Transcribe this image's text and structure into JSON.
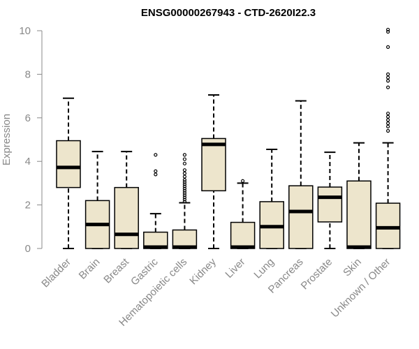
{
  "chart_data": {
    "type": "boxplot",
    "title": "ENSG00000267943 - CTD-2620I22.3",
    "xlabel": "",
    "ylabel": "Expression",
    "ylim": [
      0,
      10
    ],
    "yticks": [
      0,
      2,
      4,
      6,
      8,
      10
    ],
    "grid": false,
    "box_color": "#ede5cc",
    "categories": [
      "Bladder",
      "Brain",
      "Breast",
      "Gastric",
      "Hematopoietic cells",
      "Kidney",
      "Liver",
      "Lung",
      "Pancreas",
      "Prostate",
      "Skin",
      "Unknown / Other"
    ],
    "boxes": [
      {
        "min": 0,
        "q1": 2.8,
        "median": 3.72,
        "q3": 4.95,
        "max": 6.9,
        "outliers": []
      },
      {
        "min": 0,
        "q1": 0,
        "median": 1.1,
        "q3": 2.2,
        "max": 4.45,
        "outliers": []
      },
      {
        "min": 0,
        "q1": 0,
        "median": 0.65,
        "q3": 2.8,
        "max": 4.45,
        "outliers": []
      },
      {
        "min": 0,
        "q1": 0,
        "median": 0.02,
        "q3": 0.75,
        "max": 1.6,
        "outliers": [
          3.4,
          3.55,
          4.3
        ]
      },
      {
        "min": 0,
        "q1": 0,
        "median": 0.02,
        "q3": 0.85,
        "max": 2.1,
        "outliers": [
          2.15,
          2.25,
          2.35,
          2.45,
          2.55,
          2.65,
          2.75,
          2.85,
          2.95,
          3.05,
          3.15,
          3.3,
          3.45,
          3.6,
          3.9,
          4.1,
          4.3
        ]
      },
      {
        "min": 0,
        "q1": 2.65,
        "median": 4.78,
        "q3": 5.05,
        "max": 7.05,
        "outliers": []
      },
      {
        "min": 0,
        "q1": 0,
        "median": 0.02,
        "q3": 1.2,
        "max": 3.0,
        "outliers": [
          3.1
        ]
      },
      {
        "min": 0,
        "q1": 0,
        "median": 1.0,
        "q3": 2.15,
        "max": 4.55,
        "outliers": []
      },
      {
        "min": 0,
        "q1": 0,
        "median": 1.7,
        "q3": 2.88,
        "max": 6.78,
        "outliers": []
      },
      {
        "min": 0,
        "q1": 1.22,
        "median": 2.35,
        "q3": 2.82,
        "max": 4.42,
        "outliers": []
      },
      {
        "min": 0,
        "q1": 0,
        "median": 0.02,
        "q3": 3.1,
        "max": 4.85,
        "outliers": []
      },
      {
        "min": 0,
        "q1": 0,
        "median": 0.95,
        "q3": 2.08,
        "max": 4.85,
        "outliers": [
          5.4,
          5.6,
          5.75,
          5.9,
          6.05,
          6.2,
          7.4,
          7.7,
          7.85,
          8.0,
          9.25,
          9.95,
          10.05
        ]
      }
    ]
  }
}
